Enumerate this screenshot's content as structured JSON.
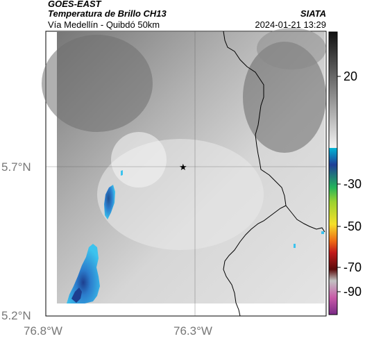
{
  "header": {
    "title": "GOES-EAST",
    "subtitle": "Temperatura de Brillo CH13",
    "credit": "SIATA",
    "location": "Vía Medellín - Quibdó 50km",
    "timestamp": "2024-01-21 13:29"
  },
  "map": {
    "lat_labels": [
      "5.7°N",
      "5.2°N"
    ],
    "lon_labels": [
      "76.8°W",
      "76.3°W"
    ],
    "marker_icon": "star-icon"
  },
  "colorbar": {
    "ticks": [
      "20",
      "-30",
      "-50",
      "-70",
      "-90"
    ]
  },
  "colors": {
    "cold_cloud_dark": "#1d3f8f",
    "cold_cloud_mid": "#2b7ccc",
    "cold_cloud_light": "#3cc3ee",
    "background_gray": "#8c8c8c"
  }
}
